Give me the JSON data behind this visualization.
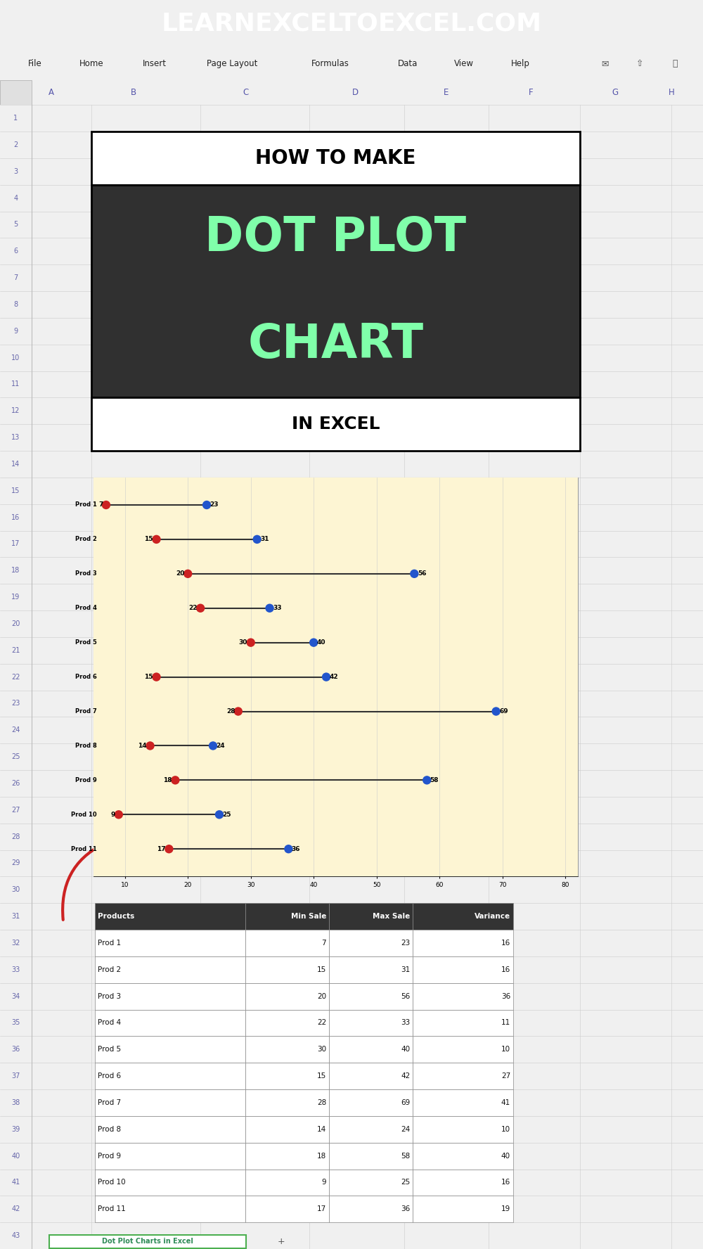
{
  "header_text": "LEARNEXCELTOEXCEL.COM",
  "header_bg": "#1e6b30",
  "header_text_color": "#ffffff",
  "excel_bg": "#f0f0f0",
  "ribbon_bg": "#d4d4d4",
  "col_header_bg": "#e8e8e8",
  "chart_bg": "#fdf5d3",
  "products": [
    "Prod 1",
    "Prod 2",
    "Prod 3",
    "Prod 4",
    "Prod 5",
    "Prod 6",
    "Prod 7",
    "Prod 8",
    "Prod 9",
    "Prod 10",
    "Prod 11"
  ],
  "min_vals": [
    7,
    15,
    20,
    22,
    30,
    15,
    28,
    14,
    18,
    9,
    17
  ],
  "max_vals": [
    23,
    31,
    56,
    33,
    40,
    42,
    69,
    24,
    58,
    25,
    36
  ],
  "variance": [
    16,
    16,
    36,
    11,
    10,
    27,
    41,
    10,
    40,
    16,
    19
  ],
  "dot_min_color": "#cc2222",
  "dot_max_color": "#2255cc",
  "line_color": "#333333",
  "dot_size": 80,
  "xlim": [
    5,
    82
  ],
  "xticks": [
    10,
    20,
    30,
    40,
    50,
    60,
    70,
    80
  ],
  "table_header": [
    "Products",
    "Min Sale",
    "Max Sale",
    "Variance"
  ],
  "table_header_bg": "#333333",
  "table_header_color": "#ffffff",
  "arrow_color": "#cc2222",
  "menu_items": [
    "File",
    "Home",
    "Insert",
    "Page Layout",
    "Formulas",
    "Data",
    "View",
    "Help"
  ],
  "col_letters": [
    "A",
    "B",
    "C",
    "D",
    "E",
    "F",
    "G",
    "H"
  ],
  "total_rows": 43,
  "title_white1_rows": [
    2,
    3
  ],
  "title_dark_rows": [
    4,
    11
  ],
  "title_white2_rows": [
    12,
    13
  ],
  "chart_rows": [
    15,
    29
  ],
  "table_header_row": 31,
  "table_data_rows": [
    32,
    42
  ]
}
